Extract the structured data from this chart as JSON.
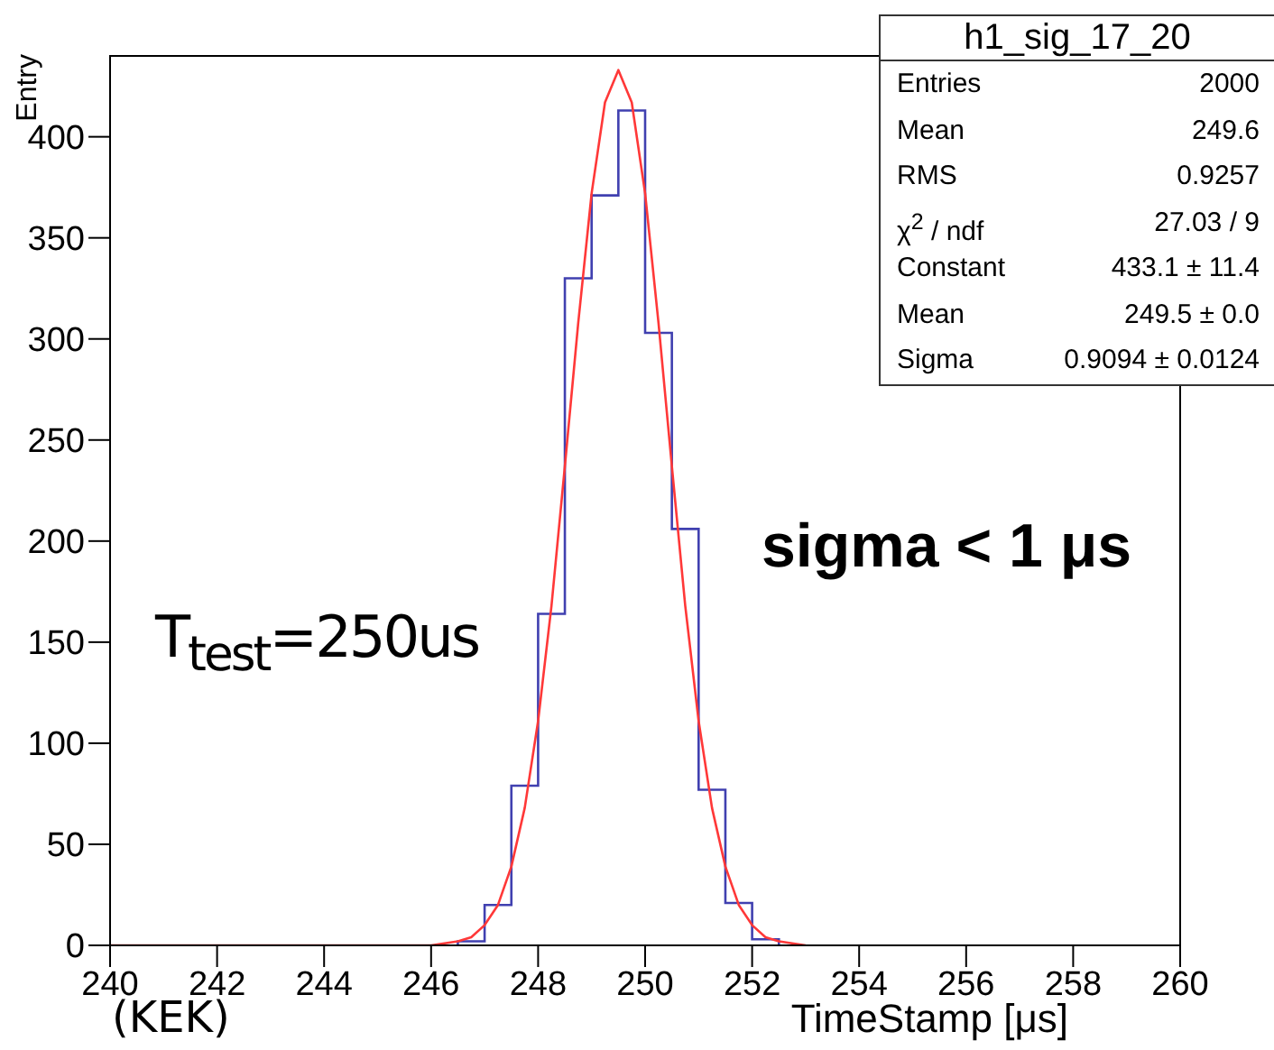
{
  "chart_data": {
    "type": "histogram",
    "xlabel": "TimeStamp [μs]",
    "ylabel": "Entry",
    "bins": [
      246.5,
      247,
      247.5,
      248,
      248.5,
      249,
      249.5,
      250,
      250.5,
      251,
      251.5,
      252,
      252.5
    ],
    "series": [
      {
        "type": "histogram",
        "color": "#4040b0",
        "values": [
          2,
          20,
          79,
          164,
          330,
          371,
          413,
          303,
          206,
          77,
          21,
          3
        ]
      },
      {
        "type": "line",
        "color": "#ff3838",
        "x": [
          240,
          246,
          246.5,
          246.75,
          247,
          247.25,
          247.5,
          247.75,
          248,
          248.25,
          248.5,
          248.75,
          249,
          249.25,
          249.5,
          249.75,
          250,
          250.25,
          250.5,
          250.75,
          251,
          251.25,
          251.5,
          251.75,
          252,
          252.25,
          252.5,
          253
        ],
        "values": [
          0,
          0,
          2,
          4,
          10,
          20,
          39,
          68,
          111,
          168,
          237,
          308,
          372,
          417,
          433,
          417,
          372,
          308,
          237,
          168,
          111,
          68,
          39,
          20,
          10,
          4,
          2,
          0
        ]
      }
    ],
    "xlim": [
      240,
      260
    ],
    "xticks": [
      240,
      242,
      244,
      246,
      248,
      250,
      252,
      254,
      256,
      258,
      260
    ],
    "ylim": [
      0,
      440
    ],
    "yticks": [
      0,
      50,
      100,
      150,
      200,
      250,
      300,
      350,
      400
    ],
    "grid": false,
    "legend": false,
    "annotations": [
      "h1_sig_17_20",
      "Entries",
      "2000",
      "Mean",
      "249.6",
      "RMS",
      "0.9257",
      "χ$^{2}$ / ndf",
      "27.03 / 9",
      "Constant",
      "433.1 ± 11.4",
      "Mean",
      "249.5 ± 0.0",
      "Sigma",
      "0.9094 ± 0.0124",
      "T$_{test}$=250us",
      "sigma < 1 μs",
      "(KEK)"
    ]
  }
}
